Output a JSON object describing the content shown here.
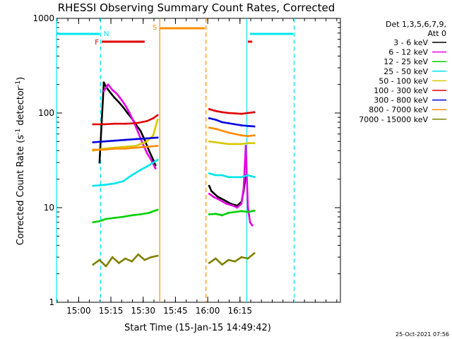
{
  "chart_data": {
    "type": "line",
    "title": "RHESSI Observing Summary Count Rates, Corrected",
    "xlabel": "Start Time (15-Jan-15 14:49:42)",
    "ylabel_main": "Corrected Count Rate (s",
    "ylabel_sup1": "-1",
    "ylabel_mid": " detector",
    "ylabel_sup2": "-1",
    "ylabel_end": ")",
    "timestamp": "25-Oct-2021 07:56",
    "x_ticks": [
      "15:00",
      "15:15",
      "15:30",
      "15:45",
      "16:00",
      "16:15"
    ],
    "x_tick_minutes": [
      10.3,
      25.3,
      40.3,
      55.3,
      70.3,
      85.3
    ],
    "xlim_minutes": [
      0,
      132
    ],
    "y_scale": "log",
    "ylim": [
      1,
      1000
    ],
    "y_ticks": [
      "1",
      "10",
      "100",
      "1000"
    ],
    "legend": {
      "placement": "right-outside",
      "header1": "Det 1,3,5,6,7,9,",
      "header2": "Att 0",
      "entries": [
        {
          "label": "3 - 6 keV",
          "color": "#000000"
        },
        {
          "label": "6 - 12 keV",
          "color": "#e600e6"
        },
        {
          "label": "12 - 25 keV",
          "color": "#00d000"
        },
        {
          "label": "25 - 50 keV",
          "color": "#00e5ee"
        },
        {
          "label": "50 - 100 keV",
          "color": "#d8c800"
        },
        {
          "label": "100 - 300 keV",
          "color": "#e00000"
        },
        {
          "label": "300 - 800 keV",
          "color": "#0000e0"
        },
        {
          "label": "800 - 7000 keV",
          "color": "#ff8c00"
        },
        {
          "label": "7000 - 15000 keV",
          "color": "#808000"
        }
      ]
    },
    "annotations": {
      "night_label": "N",
      "flare_label": "F",
      "saa_label": "S",
      "night_bars": [
        [
          0,
          20
        ],
        [
          90,
          110
        ]
      ],
      "flare_bars": [
        [
          21,
          41
        ],
        [
          89,
          91
        ]
      ],
      "saa_bar": [
        48,
        69
      ],
      "cyan_lines_solid": [
        0,
        88.5
      ],
      "cyan_lines_dashed": [
        20.5,
        110.5
      ],
      "orange_lines_solid": [
        48
      ],
      "orange_lines_dashed": [
        69.5
      ]
    },
    "series": [
      {
        "name": "3 - 6 keV",
        "color": "#000000",
        "segments": [
          {
            "x": [
              20,
              22,
              23,
              25,
              27,
              29,
              31,
              33,
              35,
              37,
              39,
              41,
              43,
              45,
              46
            ],
            "y": [
              30,
              210,
              190,
              165,
              145,
              130,
              115,
              100,
              88,
              75,
              65,
              52,
              40,
              32,
              28
            ]
          },
          {
            "x": [
              71,
              72,
              75,
              78,
              81,
              84,
              86,
              87,
              88
            ],
            "y": [
              17,
              15,
              13,
              12,
              11,
              10.5,
              11.5,
              15,
              22
            ]
          }
        ]
      },
      {
        "name": "6 - 12 keV",
        "color": "#e600e6",
        "segments": [
          {
            "x": [
              22,
              24,
              26,
              28,
              30,
              32,
              34,
              36,
              38,
              40,
              42,
              44,
              46
            ],
            "y": [
              170,
              200,
              175,
              160,
              140,
              120,
              100,
              80,
              62,
              48,
              38,
              32,
              26
            ]
          },
          {
            "x": [
              71,
              73,
              76,
              79,
              82,
              84,
              86,
              87,
              88,
              89,
              90,
              91
            ],
            "y": [
              14,
              13,
              12,
              11,
              10.5,
              10,
              11,
              16,
              45,
              10,
              7,
              6.5
            ]
          }
        ]
      },
      {
        "name": "12 - 25 keV",
        "color": "#00d000",
        "segments": [
          {
            "x": [
              17,
              20,
              23,
              27,
              31,
              35,
              39,
              43,
              47
            ],
            "y": [
              7,
              7.2,
              7.6,
              7.8,
              8.0,
              8.3,
              8.5,
              8.8,
              9.5
            ]
          },
          {
            "x": [
              71,
              74,
              77,
              80,
              83,
              86,
              89,
              92
            ],
            "y": [
              8.5,
              8.6,
              8.3,
              8.8,
              9.0,
              9.2,
              9.0,
              9.3
            ]
          }
        ]
      },
      {
        "name": "25 - 50 keV",
        "color": "#00e5ee",
        "segments": [
          {
            "x": [
              17,
              20,
              23,
              27,
              31,
              35,
              39,
              43,
              47
            ],
            "y": [
              17,
              17.2,
              17.5,
              18,
              19,
              22,
              25,
              28,
              32
            ]
          },
          {
            "x": [
              71,
              74,
              77,
              80,
              83,
              86,
              89,
              92
            ],
            "y": [
              23,
              22,
              22,
              21,
              21,
              21,
              22,
              21
            ]
          }
        ]
      },
      {
        "name": "50 - 100 keV",
        "color": "#d8c800",
        "segments": [
          {
            "x": [
              17,
              22,
              27,
              32,
              37,
              42,
              45,
              47
            ],
            "y": [
              40,
              42,
              43,
              44,
              45,
              50,
              58,
              85
            ]
          },
          {
            "x": [
              71,
              74,
              77,
              80,
              83,
              86,
              89,
              92
            ],
            "y": [
              50,
              49,
              48,
              47,
              47,
              47,
              48,
              48
            ]
          }
        ]
      },
      {
        "name": "100 - 300 keV",
        "color": "#e00000",
        "segments": [
          {
            "x": [
              17,
              22,
              27,
              32,
              37,
              42,
              45,
              47
            ],
            "y": [
              76,
              76,
              77,
              77,
              78,
              82,
              88,
              95
            ]
          },
          {
            "x": [
              71,
              74,
              77,
              80,
              83,
              86,
              89,
              92
            ],
            "y": [
              110,
              105,
              102,
              100,
              99,
              98,
              100,
              102
            ]
          }
        ]
      },
      {
        "name": "300 - 800 keV",
        "color": "#0000e0",
        "segments": [
          {
            "x": [
              17,
              22,
              27,
              32,
              37,
              42,
              47
            ],
            "y": [
              49,
              50,
              51,
              52,
              53,
              54,
              55
            ]
          },
          {
            "x": [
              71,
              74,
              77,
              80,
              83,
              86,
              89,
              92
            ],
            "y": [
              88,
              85,
              80,
              78,
              76,
              74,
              73,
              72
            ]
          }
        ]
      },
      {
        "name": "800 - 7000 keV",
        "color": "#ff8c00",
        "segments": [
          {
            "x": [
              17,
              22,
              27,
              32,
              37,
              42,
              47
            ],
            "y": [
              41,
              41,
              42,
              42,
              43,
              44,
              45
            ]
          },
          {
            "x": [
              71,
              74,
              77,
              80,
              83,
              86,
              89,
              92
            ],
            "y": [
              70,
              68,
              65,
              62,
              60,
              58,
              57,
              58
            ]
          }
        ]
      },
      {
        "name": "7000 - 15000 keV",
        "color": "#808000",
        "segments": [
          {
            "x": [
              17,
              20,
              23,
              26,
              29,
              32,
              35,
              38,
              41,
              44,
              47
            ],
            "y": [
              2.5,
              2.8,
              2.4,
              3.0,
              2.6,
              2.9,
              2.7,
              3.2,
              2.8,
              3.0,
              3.1
            ]
          },
          {
            "x": [
              71,
              74,
              77,
              80,
              83,
              86,
              89,
              92
            ],
            "y": [
              2.6,
              2.9,
              2.5,
              2.8,
              2.7,
              3.0,
              2.9,
              3.3
            ]
          }
        ]
      }
    ]
  }
}
